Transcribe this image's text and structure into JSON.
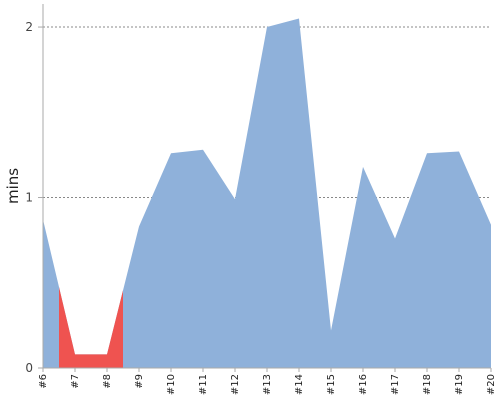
{
  "chart_data": {
    "type": "area",
    "title": "",
    "xlabel": "",
    "ylabel": "mins",
    "categories": [
      "#6",
      "#7",
      "#8",
      "#9",
      "#10",
      "#11",
      "#12",
      "#13",
      "#14",
      "#15",
      "#16",
      "#17",
      "#18",
      "#19",
      "#20"
    ],
    "values": [
      0.87,
      0.08,
      0.08,
      0.83,
      1.26,
      1.28,
      0.99,
      2.0,
      2.05,
      0.22,
      1.18,
      0.76,
      1.26,
      1.27,
      0.84
    ],
    "highlight": {
      "from": "#6.5",
      "to": "#8.5",
      "color": "#ef5350"
    },
    "ylim": [
      0,
      2.1
    ],
    "yticks": [
      0,
      1,
      2
    ],
    "grid": true,
    "colors": {
      "area": "#8fb1da",
      "highlight": "#ef5350"
    }
  }
}
